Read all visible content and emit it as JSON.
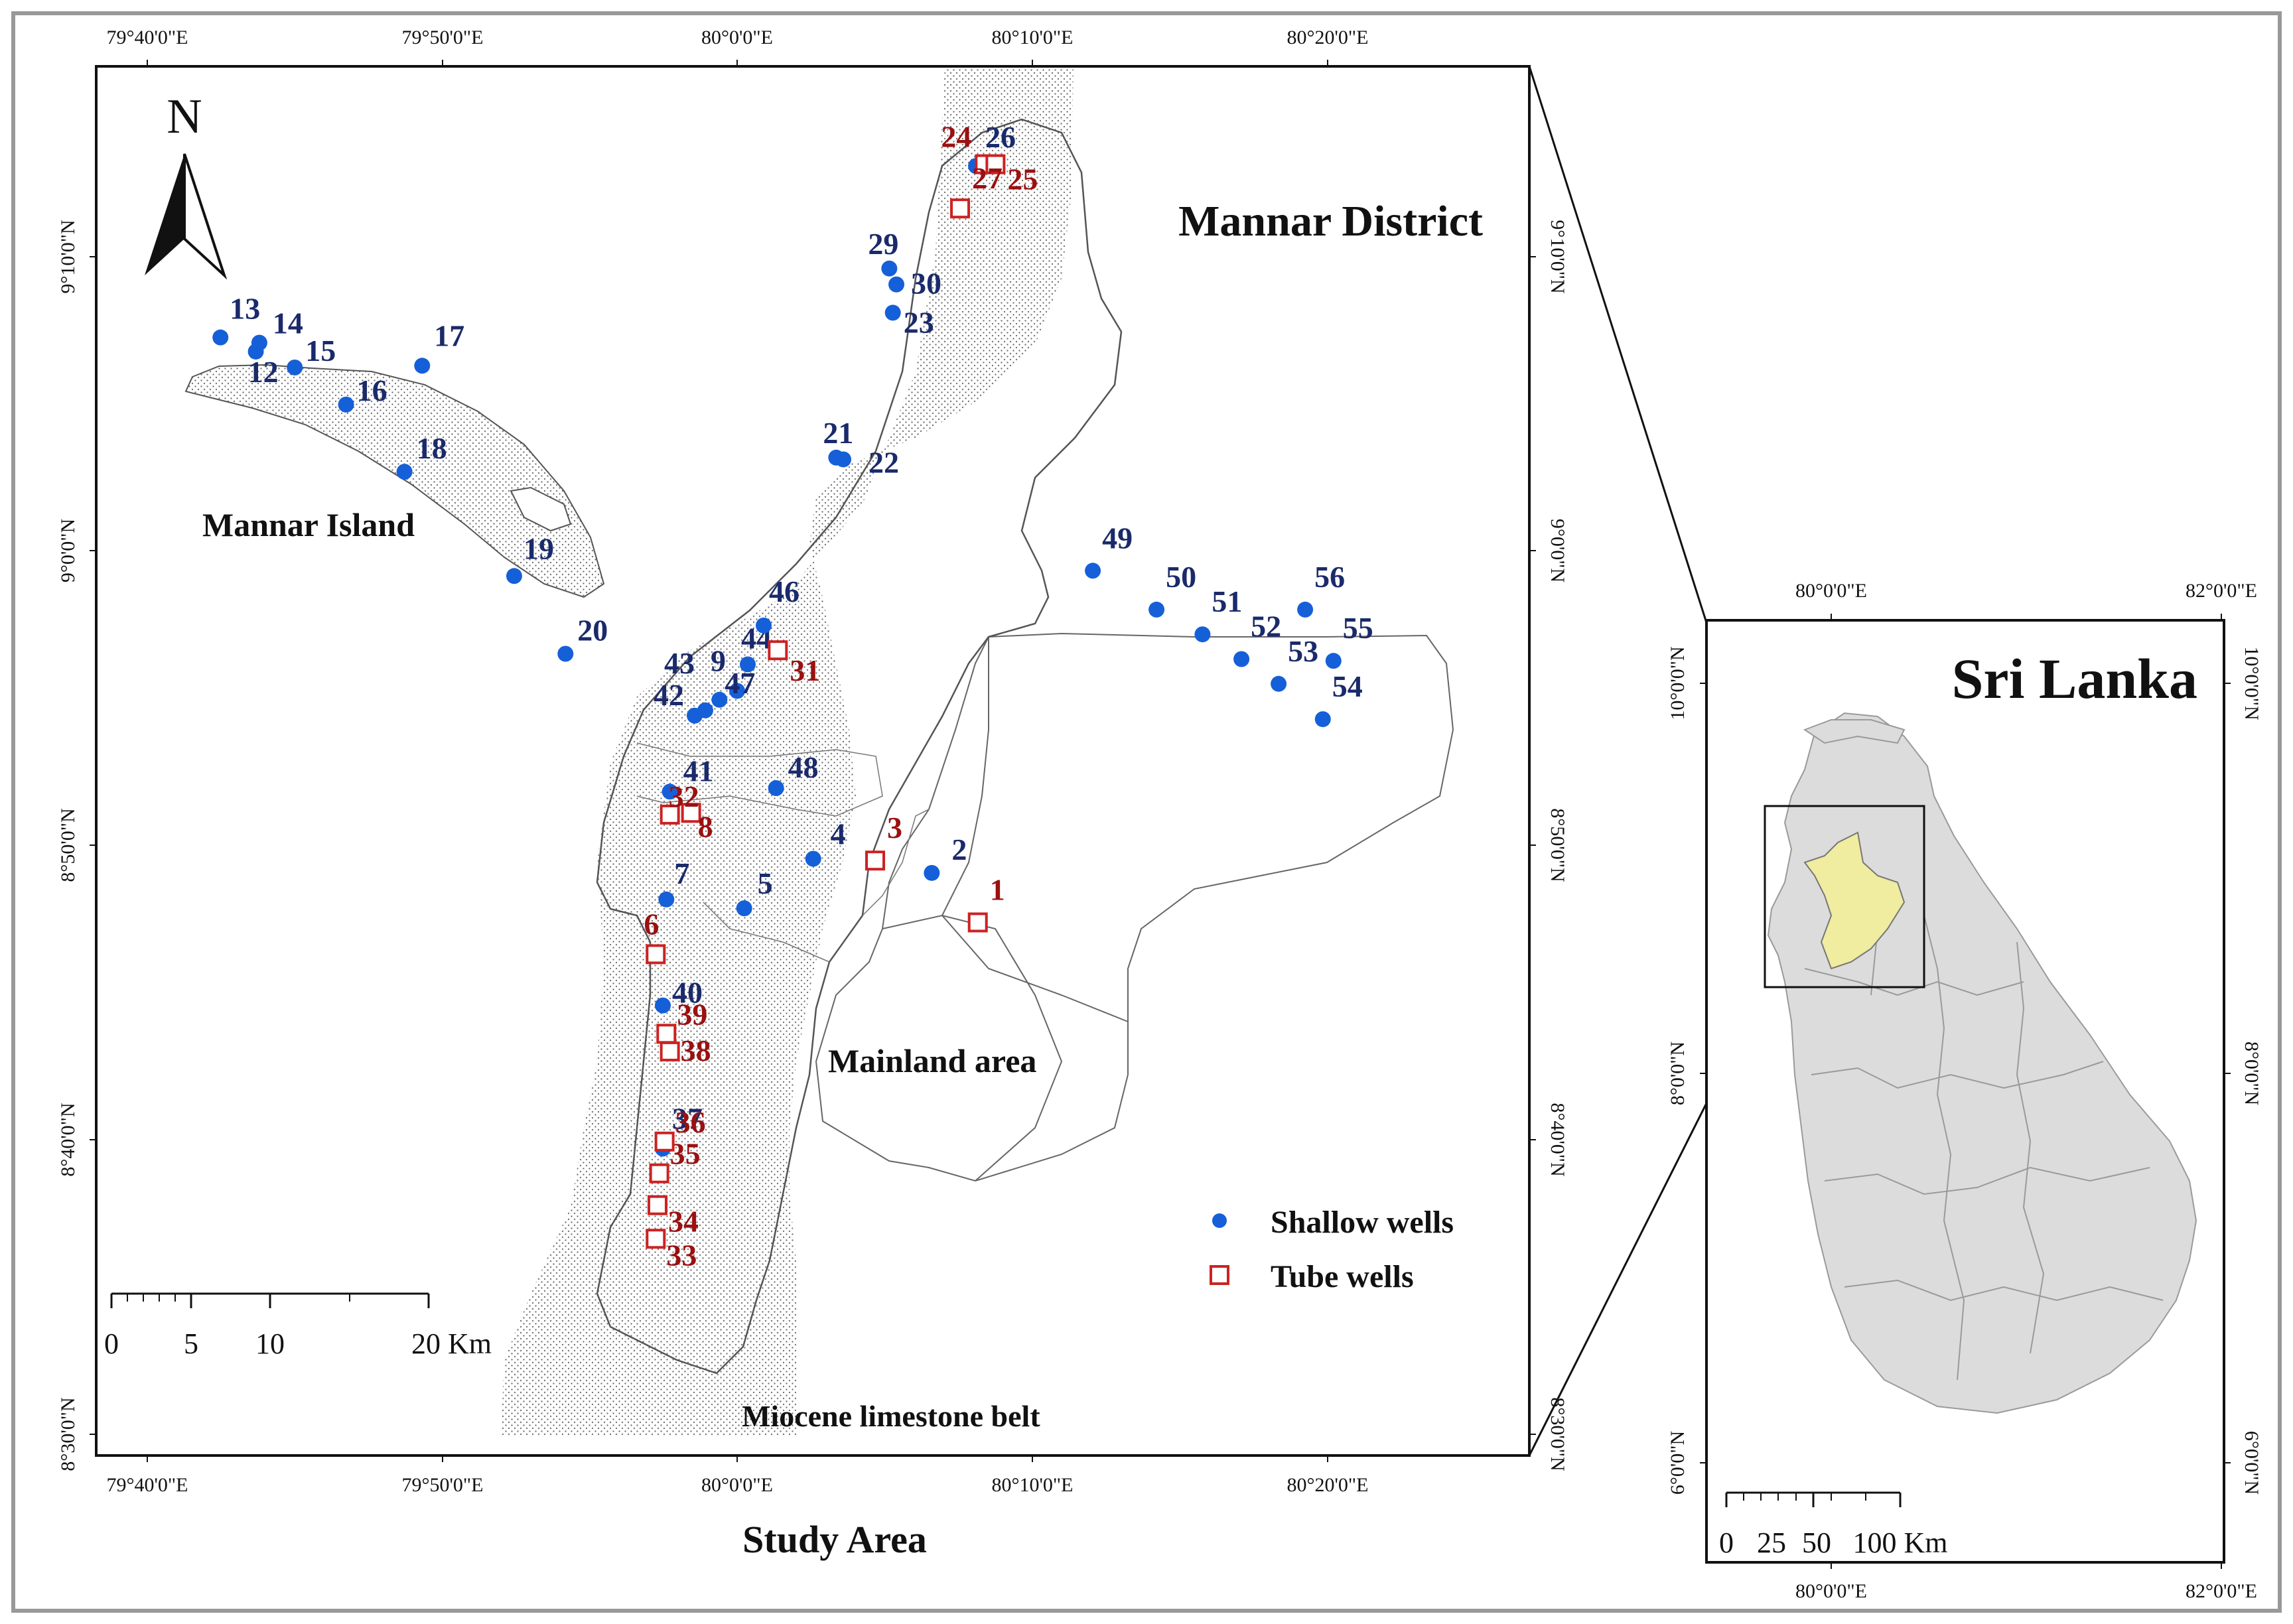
{
  "map": {
    "main_title": "Mannar District",
    "bottom_title": "Study Area",
    "region_labels": {
      "island": "Mannar Island",
      "mainland": "Mainland area",
      "limestone": "Miocene limestone belt"
    },
    "north": "N",
    "ticks_top": [
      "79°40'0\"E",
      "79°50'0\"E",
      "80°0'0\"E",
      "80°10'0\"E",
      "80°20'0\"E"
    ],
    "ticks_bottom": [
      "79°40'0\"E",
      "79°50'0\"E",
      "80°0'0\"E",
      "80°10'0\"E",
      "80°20'0\"E"
    ],
    "ticks_left": [
      "9°10'0\"N",
      "9°0'0\"N",
      "8°50'0\"N",
      "8°40'0\"N",
      "8°30'0\"N"
    ],
    "ticks_right": [
      "9°10'0\"N",
      "9°0'0\"N",
      "8°50'0\"N",
      "8°40'0\"N",
      "8°30'0\"N"
    ],
    "scale": {
      "labels": [
        "0",
        "5",
        "10",
        "20 Km"
      ]
    },
    "legend": {
      "shallow": "Shallow wells",
      "tube": "Tube wells",
      "shallow_color": "#1560d8",
      "tube_color": "#cc2222"
    },
    "shallow_wells": [
      {
        "id": "2",
        "lon": 80.11,
        "lat": 8.818
      },
      {
        "id": "4",
        "lon": 80.043,
        "lat": 8.826
      },
      {
        "id": "5",
        "lon": 80.004,
        "lat": 8.798
      },
      {
        "id": "7",
        "lon": 79.96,
        "lat": 8.803
      },
      {
        "id": "9",
        "lon": 80.0,
        "lat": 8.921
      },
      {
        "id": "12",
        "lon": 79.728,
        "lat": 9.113
      },
      {
        "id": "13",
        "lon": 79.708,
        "lat": 9.121
      },
      {
        "id": "14",
        "lon": 79.73,
        "lat": 9.118
      },
      {
        "id": "15",
        "lon": 79.75,
        "lat": 9.104
      },
      {
        "id": "16",
        "lon": 79.779,
        "lat": 9.083
      },
      {
        "id": "17",
        "lon": 79.822,
        "lat": 9.105
      },
      {
        "id": "18",
        "lon": 79.812,
        "lat": 9.045
      },
      {
        "id": "19",
        "lon": 79.874,
        "lat": 8.986
      },
      {
        "id": "20",
        "lon": 79.903,
        "lat": 8.942
      },
      {
        "id": "21",
        "lon": 80.056,
        "lat": 9.053
      },
      {
        "id": "22",
        "lon": 80.06,
        "lat": 9.052
      },
      {
        "id": "23",
        "lon": 80.088,
        "lat": 9.135
      },
      {
        "id": "26",
        "lon": 80.135,
        "lat": 9.218
      },
      {
        "id": "29",
        "lon": 80.086,
        "lat": 9.16
      },
      {
        "id": "30",
        "lon": 80.09,
        "lat": 9.151
      },
      {
        "id": "37",
        "lon": 79.958,
        "lat": 8.662
      },
      {
        "id": "40",
        "lon": 79.958,
        "lat": 8.743
      },
      {
        "id": "41",
        "lon": 79.962,
        "lat": 8.864
      },
      {
        "id": "42",
        "lon": 79.976,
        "lat": 8.907
      },
      {
        "id": "43",
        "lon": 79.982,
        "lat": 8.91
      },
      {
        "id": "44",
        "lon": 80.006,
        "lat": 8.936
      },
      {
        "id": "46",
        "lon": 80.015,
        "lat": 8.958
      },
      {
        "id": "47",
        "lon": 79.99,
        "lat": 8.916
      },
      {
        "id": "48",
        "lon": 80.022,
        "lat": 8.866
      },
      {
        "id": "49",
        "lon": 80.201,
        "lat": 8.989
      },
      {
        "id": "50",
        "lon": 80.237,
        "lat": 8.967
      },
      {
        "id": "51",
        "lon": 80.263,
        "lat": 8.953
      },
      {
        "id": "52",
        "lon": 80.285,
        "lat": 8.939
      },
      {
        "id": "53",
        "lon": 80.306,
        "lat": 8.925
      },
      {
        "id": "54",
        "lon": 80.331,
        "lat": 8.905
      },
      {
        "id": "55",
        "lon": 80.337,
        "lat": 8.938
      },
      {
        "id": "56",
        "lon": 80.321,
        "lat": 8.967
      }
    ],
    "tube_wells": [
      {
        "id": "1",
        "lon": 80.136,
        "lat": 8.79
      },
      {
        "id": "3",
        "lon": 80.078,
        "lat": 8.825
      },
      {
        "id": "6",
        "lon": 79.954,
        "lat": 8.772
      },
      {
        "id": "8",
        "lon": 79.974,
        "lat": 8.852
      },
      {
        "id": "24",
        "lon": 80.14,
        "lat": 9.219
      },
      {
        "id": "25",
        "lon": 80.146,
        "lat": 9.219
      },
      {
        "id": "27",
        "lon": 80.126,
        "lat": 9.194
      },
      {
        "id": "31",
        "lon": 80.023,
        "lat": 8.944
      },
      {
        "id": "32",
        "lon": 79.962,
        "lat": 8.851
      },
      {
        "id": "33",
        "lon": 79.954,
        "lat": 8.611
      },
      {
        "id": "34",
        "lon": 79.955,
        "lat": 8.63
      },
      {
        "id": "35",
        "lon": 79.956,
        "lat": 8.648
      },
      {
        "id": "36",
        "lon": 79.959,
        "lat": 8.666
      },
      {
        "id": "38",
        "lon": 79.962,
        "lat": 8.717
      },
      {
        "id": "39",
        "lon": 79.96,
        "lat": 8.727
      }
    ],
    "inset": {
      "title": "Sri Lanka",
      "ticks_top": [
        "80°0'0\"E",
        "82°0'0\"E"
      ],
      "ticks_bottom": [
        "80°0'0\"E",
        "82°0'0\"E"
      ],
      "ticks_left": [
        "10°0'0\"N",
        "8°0'0\"N",
        "6°0'0\"N"
      ],
      "ticks_right": [
        "10°0'0\"N",
        "8°0'0\"N",
        "6°0'0\"N"
      ],
      "scale": {
        "labels": [
          "0",
          "25",
          "50",
          "100 Km"
        ]
      }
    }
  }
}
